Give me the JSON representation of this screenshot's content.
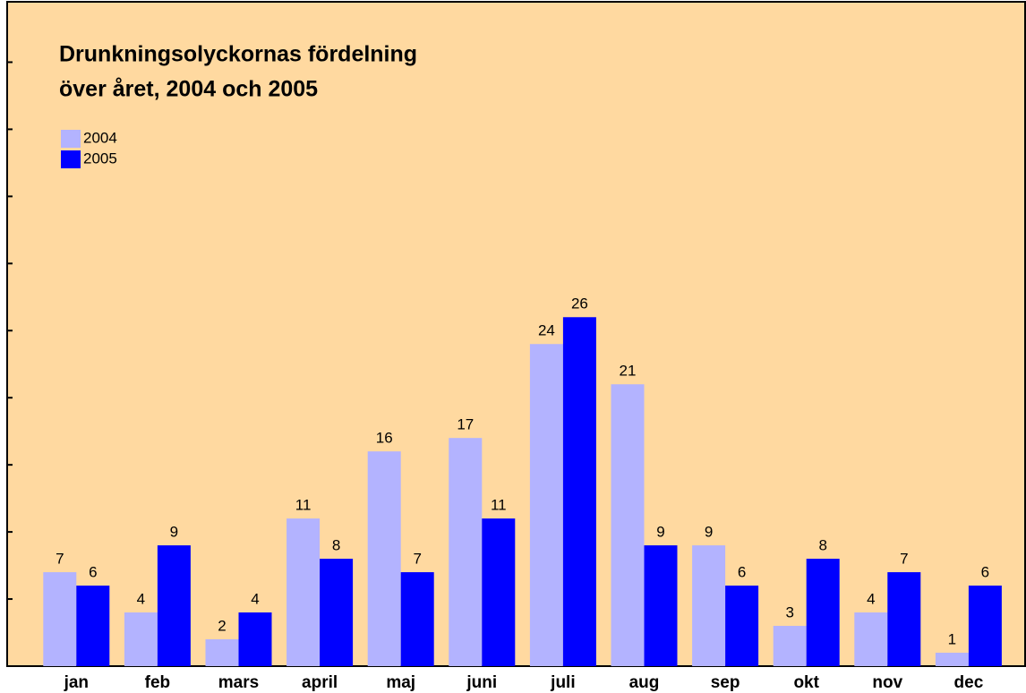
{
  "chart_data": {
    "type": "bar",
    "title": [
      "Drunkningsolyckornas fördelning",
      "över året, 2004 och  2005"
    ],
    "categories": [
      "jan",
      "feb",
      "mars",
      "april",
      "maj",
      "juni",
      "juli",
      "aug",
      "sep",
      "okt",
      "nov",
      "dec"
    ],
    "series": [
      {
        "name": "2004",
        "color": "#b3b3ff",
        "values": [
          7,
          4,
          2,
          11,
          16,
          17,
          24,
          21,
          9,
          3,
          4,
          1
        ]
      },
      {
        "name": "2005",
        "color": "#0000ff",
        "values": [
          6,
          9,
          4,
          8,
          7,
          11,
          26,
          9,
          6,
          8,
          7,
          6
        ]
      }
    ],
    "ylim": [
      0,
      49.5
    ],
    "yticks": [
      0,
      5,
      10,
      15,
      20,
      25,
      30,
      35,
      40,
      45
    ],
    "background": "#ffd9a0"
  }
}
